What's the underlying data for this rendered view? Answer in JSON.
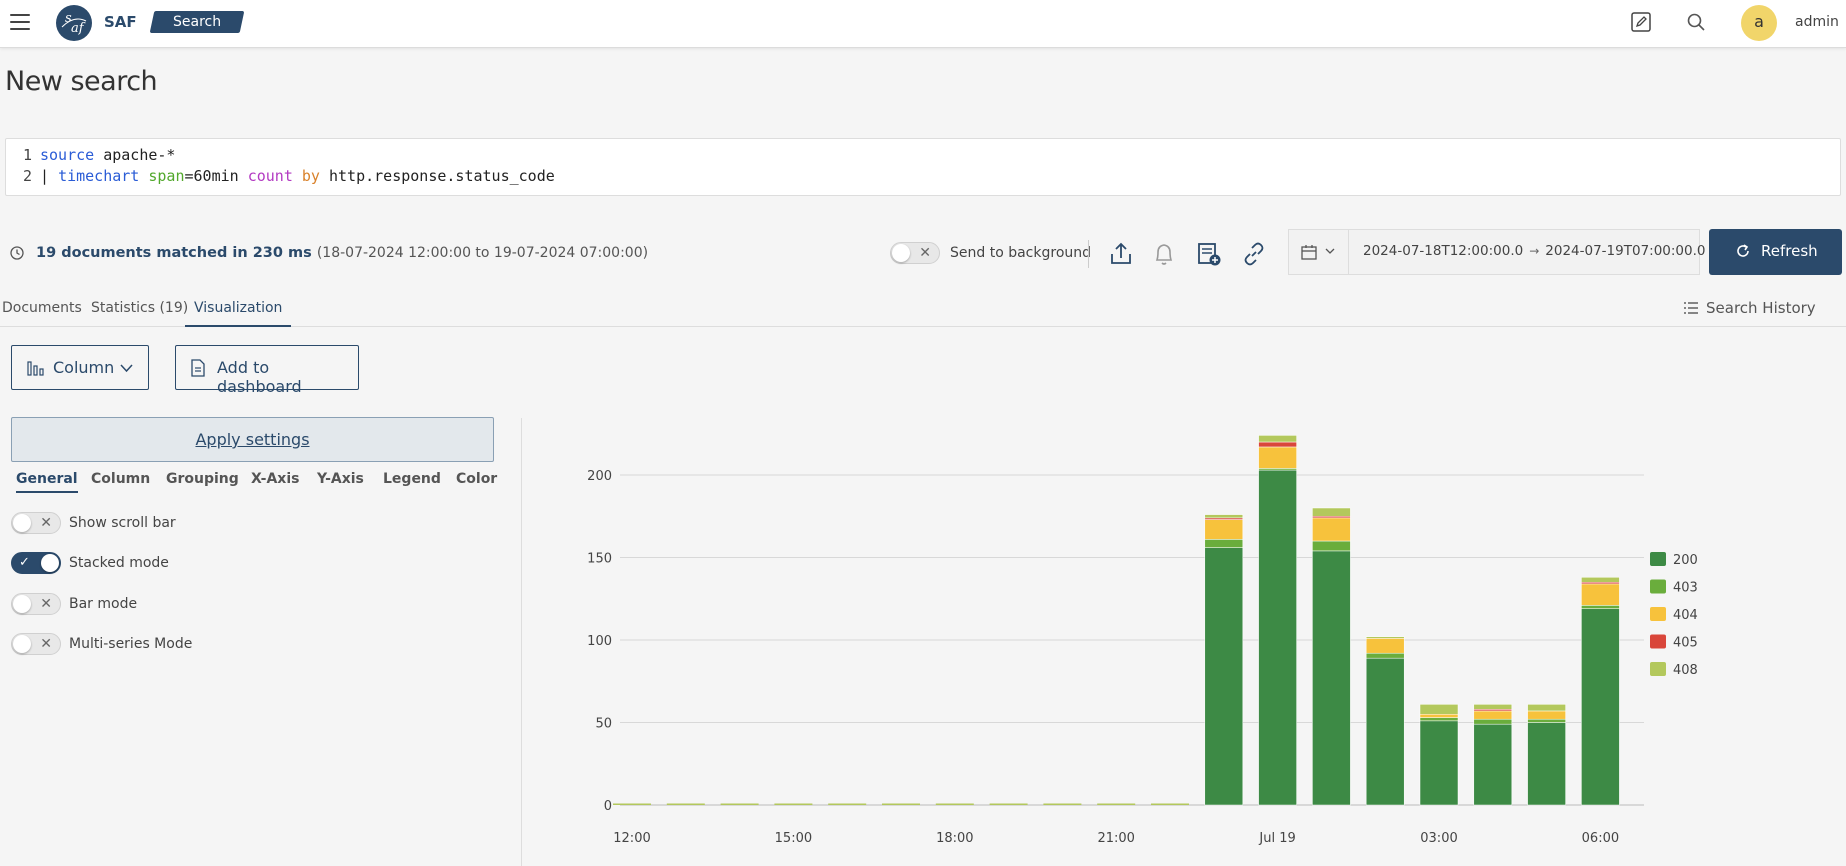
{
  "header": {
    "logo_text": "SAF",
    "search_tag": "Search",
    "user_initial": "a",
    "user_name": "admin"
  },
  "page_title": "New search",
  "query": {
    "lines": [
      {
        "num": "1",
        "tokens": [
          [
            "kw-blue",
            "source"
          ],
          [
            "kw-plain",
            " apache-*"
          ]
        ]
      },
      {
        "num": "2",
        "tokens": [
          [
            "kw-plain",
            "| "
          ],
          [
            "kw-blue",
            "timechart"
          ],
          [
            "kw-plain",
            " "
          ],
          [
            "kw-green",
            "span"
          ],
          [
            "kw-plain",
            "=60min "
          ],
          [
            "kw-purple",
            "count"
          ],
          [
            "kw-plain",
            " "
          ],
          [
            "kw-orange",
            "by"
          ],
          [
            "kw-plain",
            " http.response.status_code"
          ]
        ]
      }
    ]
  },
  "status": {
    "matched": "19 documents matched in 230 ms",
    "range": "(18-07-2024 12:00:00 to 19-07-2024 07:00:00)",
    "background_label": "Send to background",
    "date_from": "2024-07-18T12:00:00.0",
    "date_arrow": "→",
    "date_to": "2024-07-19T07:00:00.0",
    "refresh_label": "Refresh"
  },
  "tabs": {
    "documents": "Documents",
    "statistics": "Statistics (19)",
    "visualization": "Visualization",
    "history": "Search History"
  },
  "controls": {
    "chart_type": "Column",
    "add_dashboard": "Add to dashboard",
    "apply": "Apply settings"
  },
  "settings_tabs": [
    "General",
    "Column",
    "Grouping",
    "X-Axis",
    "Y-Axis",
    "Legend",
    "Color"
  ],
  "options": [
    {
      "label": "Show scroll bar",
      "on": false
    },
    {
      "label": "Stacked mode",
      "on": true
    },
    {
      "label": "Bar mode",
      "on": false
    },
    {
      "label": "Multi-series Mode",
      "on": false
    }
  ],
  "icons": {
    "menu": "hamburger-icon",
    "edit": "edit-icon",
    "search": "search-icon",
    "clock": "clock-icon",
    "share": "share-icon",
    "bell": "bell-icon",
    "report": "report-add-icon",
    "link": "link-icon",
    "calendar": "calendar-icon",
    "refresh": "refresh-icon",
    "list": "list-icon",
    "column_chart": "column-chart-icon",
    "document": "document-icon"
  },
  "colors": {
    "primary": "#2b4a6b",
    "avatar": "#f1d56a"
  },
  "chart_data": {
    "type": "bar",
    "stacked": true,
    "x": [
      "2024-07-18 12:00",
      "2024-07-18 13:00",
      "2024-07-18 14:00",
      "2024-07-18 15:00",
      "2024-07-18 16:00",
      "2024-07-18 17:00",
      "2024-07-18 18:00",
      "2024-07-18 19:00",
      "2024-07-18 20:00",
      "2024-07-18 21:00",
      "2024-07-18 22:00",
      "2024-07-18 23:00",
      "2024-07-19 00:00",
      "2024-07-19 01:00",
      "2024-07-19 02:00",
      "2024-07-19 03:00",
      "2024-07-19 04:00",
      "2024-07-19 05:00",
      "2024-07-19 06:00"
    ],
    "x_tick_labels": [
      {
        "index": 0,
        "label": "12:00"
      },
      {
        "index": 3,
        "label": "15:00"
      },
      {
        "index": 6,
        "label": "18:00"
      },
      {
        "index": 9,
        "label": "21:00"
      },
      {
        "index": 12,
        "label": "Jul 19"
      },
      {
        "index": 15,
        "label": "03:00"
      },
      {
        "index": 18,
        "label": "06:00"
      }
    ],
    "series": [
      {
        "name": "200",
        "color": "#3d8a45",
        "values": [
          0,
          0,
          0,
          0,
          0,
          0,
          0,
          0,
          0,
          0,
          0,
          156,
          203,
          154,
          89,
          51,
          49,
          50,
          119
        ]
      },
      {
        "name": "403",
        "color": "#6aad3c",
        "values": [
          0,
          0,
          0,
          0,
          0,
          0,
          0,
          0,
          0,
          0,
          0,
          5,
          1,
          6,
          3,
          2,
          3,
          2,
          2
        ]
      },
      {
        "name": "404",
        "color": "#f7c23c",
        "values": [
          0,
          0,
          0,
          0,
          0,
          0,
          0,
          0,
          0,
          0,
          0,
          12,
          13,
          14,
          9,
          2,
          5,
          5,
          13
        ]
      },
      {
        "name": "405",
        "color": "#d9463a",
        "values": [
          0,
          0,
          0,
          0,
          0,
          0,
          0,
          0,
          0,
          0,
          0,
          1,
          3,
          1,
          0,
          0,
          1,
          0,
          1
        ]
      },
      {
        "name": "408",
        "color": "#b3c85c",
        "values": [
          0,
          0,
          0,
          0,
          0,
          0,
          0,
          0,
          0,
          0,
          0,
          2,
          4,
          5,
          1,
          6,
          3,
          4,
          3
        ]
      }
    ],
    "y_ticks": [
      0,
      50,
      100,
      150,
      200
    ],
    "ylim": [
      0,
      225
    ],
    "grid": true,
    "legend": "right"
  }
}
